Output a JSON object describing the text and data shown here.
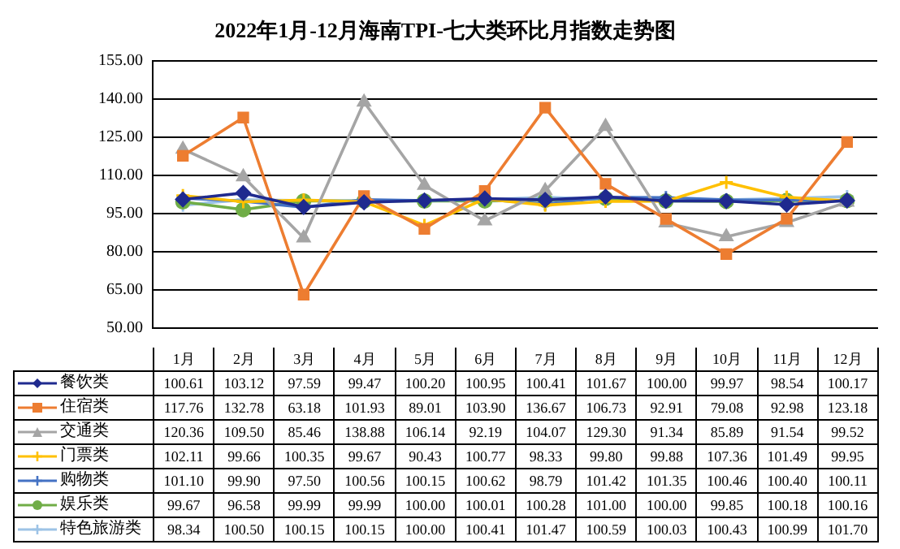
{
  "chart_data": {
    "type": "line",
    "title": "2022年1月-12月海南TPI-七大类环比月指数走势图",
    "categories": [
      "1月",
      "2月",
      "3月",
      "4月",
      "5月",
      "6月",
      "7月",
      "8月",
      "9月",
      "10月",
      "11月",
      "12月"
    ],
    "series": [
      {
        "name": "餐饮类",
        "color": "#1f2a8f",
        "marker": "diamond",
        "values": [
          100.61,
          103.12,
          97.59,
          99.47,
          100.2,
          100.95,
          100.41,
          101.67,
          100.0,
          99.97,
          98.54,
          100.17
        ],
        "value_labels": [
          "100.61",
          "103.12",
          "97.59",
          "99.47",
          "100.20",
          "100.95",
          "100.41",
          "101.67",
          "100.00",
          "99.97",
          "98.54",
          "100.17"
        ]
      },
      {
        "name": "住宿类",
        "color": "#ed7d31",
        "marker": "square",
        "values": [
          117.76,
          132.78,
          63.18,
          101.93,
          89.01,
          103.9,
          136.67,
          106.73,
          92.91,
          79.08,
          92.98,
          123.18
        ],
        "value_labels": [
          "117.76",
          "132.78",
          "63.18",
          "101.93",
          "89.01",
          "103.90",
          "136.67",
          "106.73",
          "92.91",
          "79.08",
          "92.98",
          "123.18"
        ]
      },
      {
        "name": "交通类",
        "color": "#a5a5a5",
        "marker": "triangle",
        "values": [
          120.36,
          109.5,
          85.46,
          138.88,
          106.14,
          92.19,
          104.07,
          129.3,
          91.34,
          85.89,
          91.54,
          99.52
        ],
        "value_labels": [
          "120.36",
          "109.50",
          "85.46",
          "138.88",
          "106.14",
          "92.19",
          "104.07",
          "129.30",
          "91.34",
          "85.89",
          "91.54",
          "99.52"
        ]
      },
      {
        "name": "门票类",
        "color": "#ffc000",
        "marker": "cross",
        "values": [
          102.11,
          99.66,
          100.35,
          99.67,
          90.43,
          100.77,
          98.33,
          99.8,
          99.88,
          107.36,
          101.49,
          99.95
        ],
        "value_labels": [
          "102.11",
          "99.66",
          "100.35",
          "99.67",
          "90.43",
          "100.77",
          "98.33",
          "99.80",
          "99.88",
          "107.36",
          "101.49",
          "99.95"
        ]
      },
      {
        "name": "购物类",
        "color": "#4472c4",
        "marker": "cross",
        "values": [
          101.1,
          99.9,
          97.5,
          100.56,
          100.15,
          100.62,
          98.79,
          101.42,
          101.35,
          100.46,
          100.4,
          100.11
        ],
        "value_labels": [
          "101.10",
          "99.90",
          "97.50",
          "100.56",
          "100.15",
          "100.62",
          "98.79",
          "101.42",
          "101.35",
          "100.46",
          "100.40",
          "100.11"
        ]
      },
      {
        "name": "娱乐类",
        "color": "#70ad47",
        "marker": "circle",
        "values": [
          99.67,
          96.58,
          99.99,
          99.99,
          100.0,
          100.01,
          100.28,
          101.0,
          100.0,
          99.85,
          100.18,
          100.16
        ],
        "value_labels": [
          "99.67",
          "96.58",
          "99.99",
          "99.99",
          "100.00",
          "100.01",
          "100.28",
          "101.00",
          "100.00",
          "99.85",
          "100.18",
          "100.16"
        ]
      },
      {
        "name": "特色旅游类",
        "color": "#9dc3e6",
        "marker": "cross",
        "values": [
          98.34,
          100.5,
          100.15,
          100.15,
          100.0,
          100.41,
          101.47,
          100.59,
          100.03,
          100.43,
          100.99,
          101.7
        ],
        "value_labels": [
          "98.34",
          "100.50",
          "100.15",
          "100.15",
          "100.00",
          "100.41",
          "101.47",
          "100.59",
          "100.03",
          "100.43",
          "100.99",
          "101.70"
        ]
      }
    ],
    "ylim": [
      50,
      155
    ],
    "yticks": [
      {
        "value": 50,
        "label": "50.00"
      },
      {
        "value": 65,
        "label": "65.00"
      },
      {
        "value": 80,
        "label": "80.00"
      },
      {
        "value": 95,
        "label": "95.00"
      },
      {
        "value": 110,
        "label": "110.00"
      },
      {
        "value": 125,
        "label": "125.00"
      },
      {
        "value": 140,
        "label": "140.00"
      },
      {
        "value": 155,
        "label": "155.00"
      }
    ],
    "grid": "y",
    "legend": "bottom",
    "line_style": "solid"
  }
}
